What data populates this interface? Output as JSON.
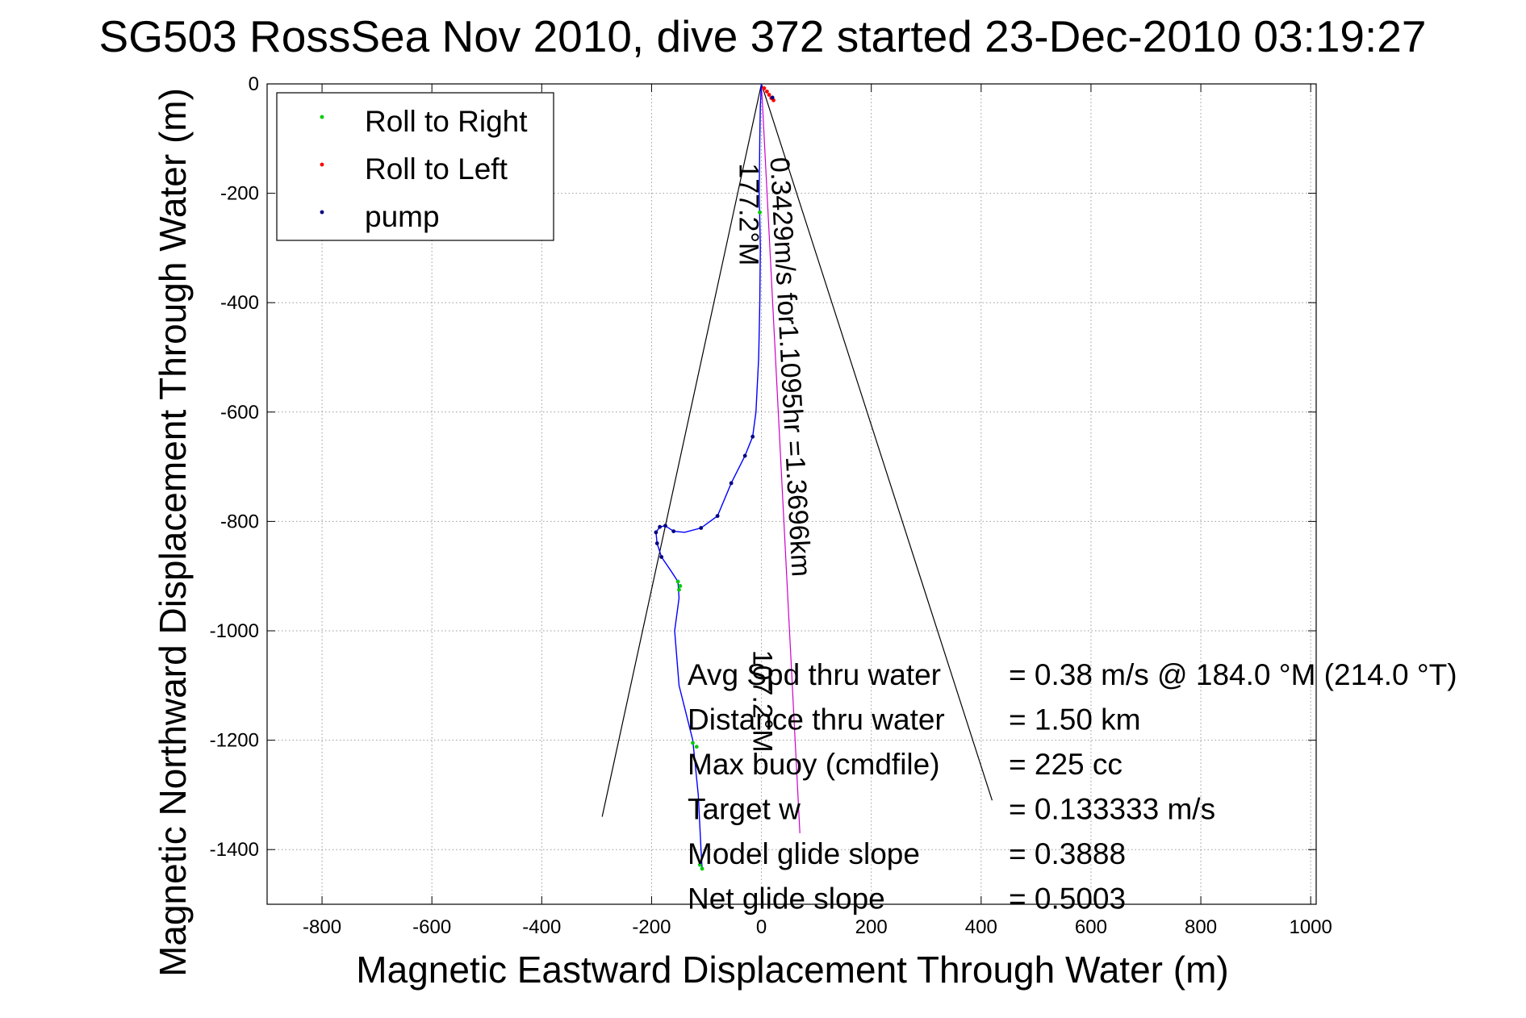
{
  "chart_data": {
    "type": "line",
    "title": "SG503 RossSea Nov 2010, dive 372 started 23-Dec-2010 03:19:27",
    "xlabel": "Magnetic Eastward Displacement Through Water (m)",
    "ylabel": "Magnetic Northward Displacement Through Water (m)",
    "xlim": [
      -900,
      1010
    ],
    "ylim": [
      -1500,
      0
    ],
    "x_ticks": [
      -800,
      -600,
      -400,
      -200,
      0,
      200,
      400,
      600,
      800,
      1000
    ],
    "y_ticks": [
      0,
      -200,
      -400,
      -600,
      -800,
      -1000,
      -1200,
      -1400
    ],
    "grid": true,
    "legend_position": "top-left",
    "legend": [
      {
        "label": "Roll to Right",
        "color": "#00cc00"
      },
      {
        "label": "Roll to Left",
        "color": "#ff0000"
      },
      {
        "label": "pump",
        "color": "#000080"
      }
    ],
    "series": [
      {
        "name": "track",
        "color": "#0000ff",
        "points": [
          [
            0,
            0
          ],
          [
            -2,
            -40
          ],
          [
            -3,
            -100
          ],
          [
            -4,
            -200
          ],
          [
            -2,
            -300
          ],
          [
            -3,
            -400
          ],
          [
            -5,
            -500
          ],
          [
            -10,
            -600
          ],
          [
            -16,
            -645
          ],
          [
            -30,
            -680
          ],
          [
            -55,
            -730
          ],
          [
            -80,
            -790
          ],
          [
            -110,
            -812
          ],
          [
            -140,
            -820
          ],
          [
            -160,
            -818
          ],
          [
            -175,
            -808
          ],
          [
            -185,
            -810
          ],
          [
            -192,
            -820
          ],
          [
            -190,
            -840
          ],
          [
            -182,
            -865
          ],
          [
            -165,
            -890
          ],
          [
            -152,
            -910
          ],
          [
            -150,
            -940
          ],
          [
            -158,
            -1000
          ],
          [
            -150,
            -1100
          ],
          [
            -125,
            -1200
          ],
          [
            -115,
            -1300
          ],
          [
            -110,
            -1400
          ],
          [
            -108,
            -1435
          ]
        ]
      },
      {
        "name": "roll-right",
        "color": "#00cc00",
        "points": [
          [
            -3,
            -235
          ],
          [
            -152,
            -910
          ],
          [
            -148,
            -918
          ],
          [
            -150,
            -925
          ],
          [
            -125,
            -1205
          ],
          [
            -118,
            -1212
          ],
          [
            -112,
            -1428
          ],
          [
            -108,
            -1435
          ]
        ]
      },
      {
        "name": "roll-left",
        "color": "#ff0000",
        "points": [
          [
            5,
            -8
          ],
          [
            10,
            -14
          ],
          [
            14,
            -20
          ],
          [
            18,
            -26
          ],
          [
            22,
            -30
          ]
        ]
      },
      {
        "name": "pump",
        "color": "#000080",
        "points": [
          [
            -16,
            -645
          ],
          [
            -30,
            -680
          ],
          [
            -55,
            -730
          ],
          [
            -80,
            -790
          ],
          [
            -110,
            -812
          ],
          [
            -175,
            -808
          ],
          [
            -185,
            -810
          ],
          [
            -192,
            -820
          ],
          [
            -190,
            -840
          ],
          [
            -182,
            -865
          ],
          [
            -160,
            -818
          ],
          [
            20,
            -25
          ]
        ]
      }
    ],
    "reference_lines": [
      {
        "name": "cone-left",
        "color": "#000000",
        "points": [
          [
            0,
            0
          ],
          [
            -290,
            -1340
          ]
        ]
      },
      {
        "name": "cone-right",
        "color": "#000000",
        "points": [
          [
            0,
            0
          ],
          [
            420,
            -1310
          ]
        ]
      },
      {
        "name": "heading",
        "color": "#cc00cc",
        "points": [
          [
            0,
            0
          ],
          [
            70,
            -1370
          ]
        ]
      }
    ],
    "annotations": {
      "angle_left": "177.2°M",
      "velocity": "0.3429m/s for1.1095hr =1.3696km",
      "angle_right": "107.2°M"
    },
    "stats": [
      {
        "label": "Avg Spd thru water",
        "value": "=  0.38 m/s @ 184.0  °M (214.0 °T)"
      },
      {
        "label": "Distance thru water",
        "value": "=  1.50 km"
      },
      {
        "label": "Max buoy (cmdfile)",
        "value": "= 225 cc"
      },
      {
        "label": "Target w",
        "value": "= 0.133333 m/s"
      },
      {
        "label": "Model glide slope",
        "value": "= 0.3888"
      },
      {
        "label": "Net glide slope",
        "value": "= 0.5003"
      }
    ]
  }
}
